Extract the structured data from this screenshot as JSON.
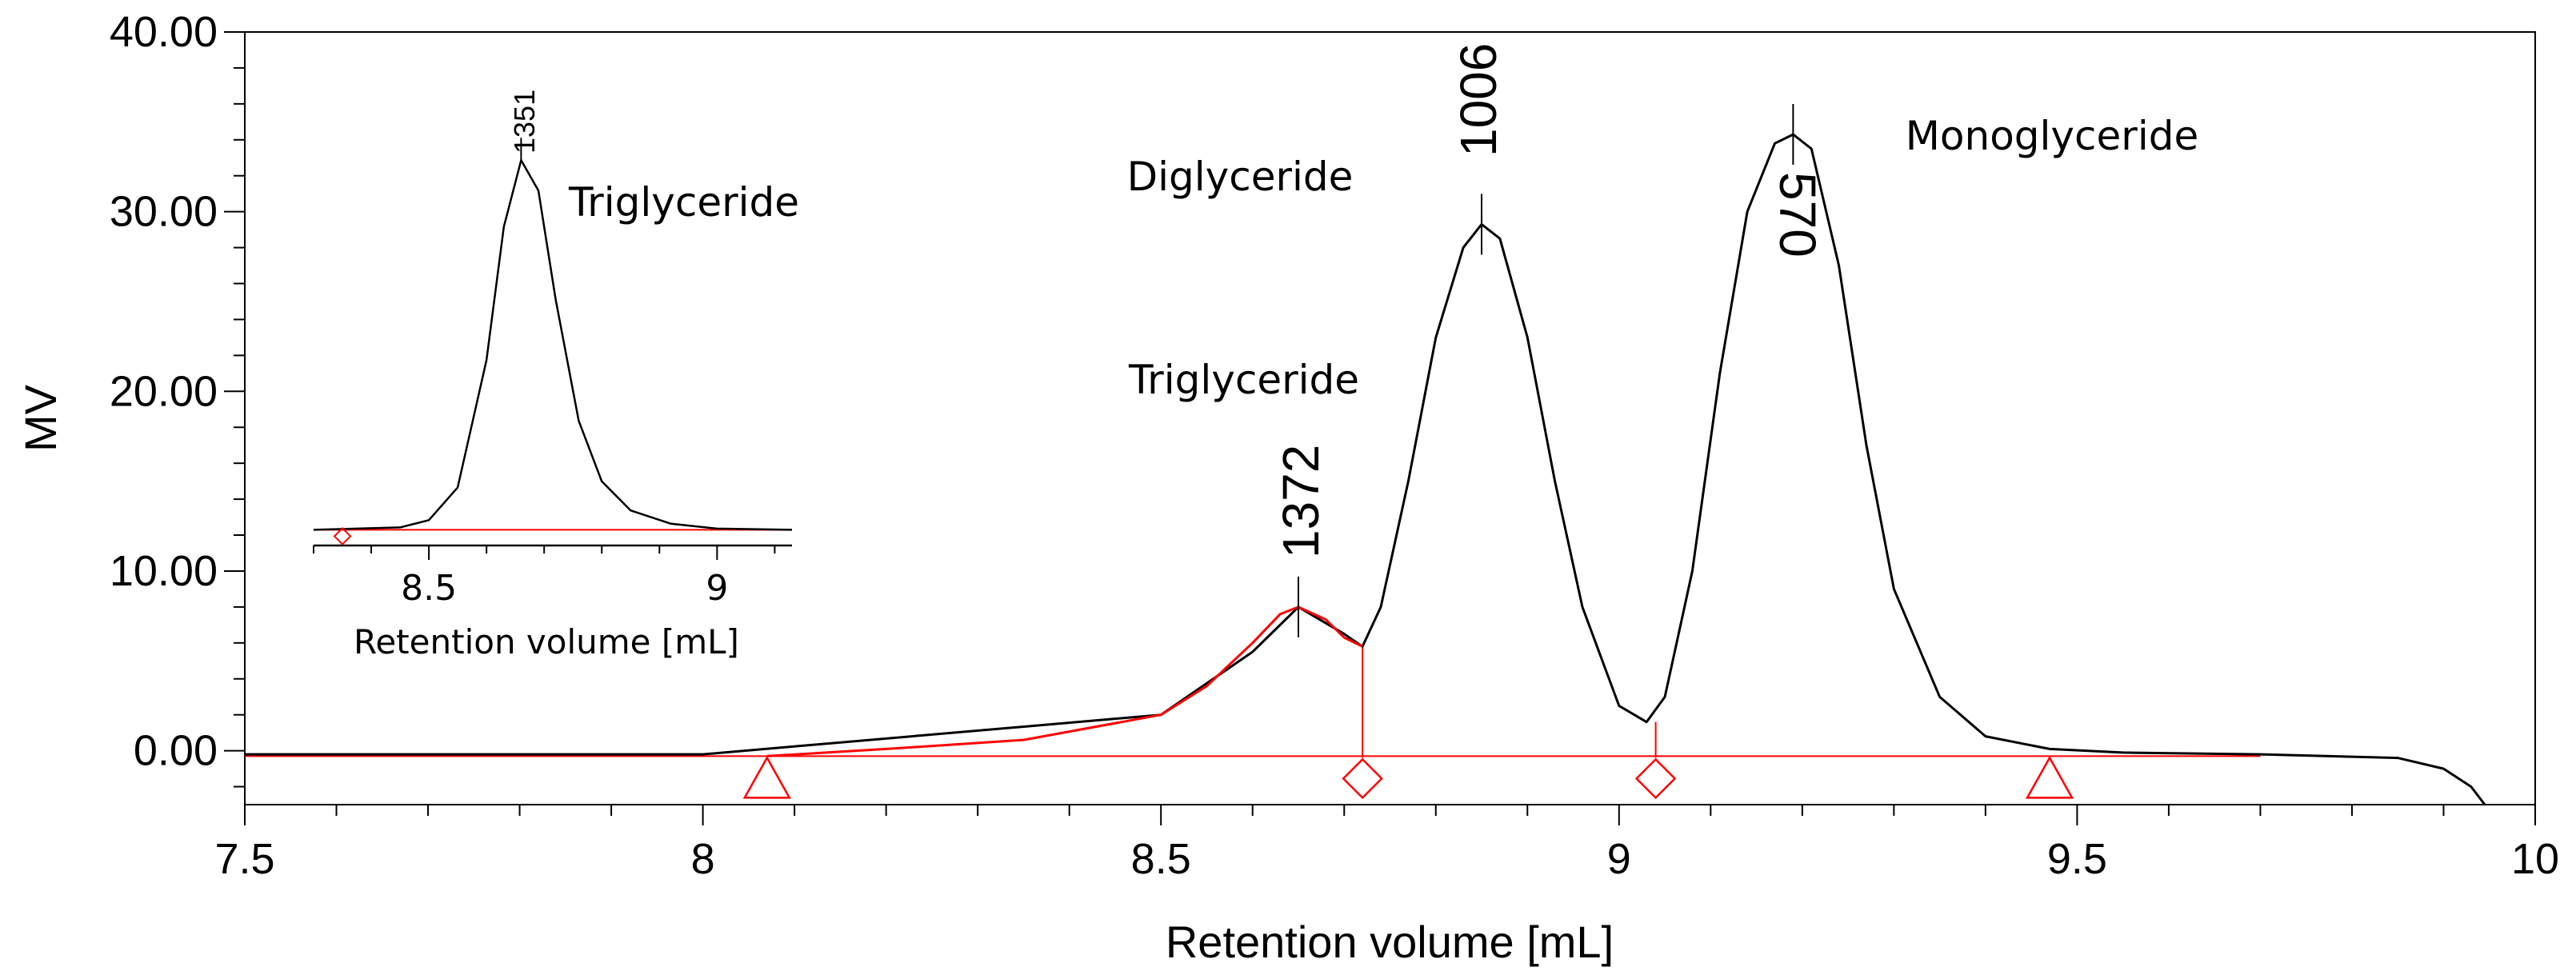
{
  "chart_data": [
    {
      "type": "line",
      "xlabel": "Retention volume [mL]",
      "ylabel": "MV",
      "xlim": [
        7.5,
        10.0
      ],
      "ylim": [
        -3.0,
        40.0
      ],
      "x_ticks": [
        "7.5",
        "8",
        "8.5",
        "9",
        "9.5",
        "10"
      ],
      "y_ticks": [
        "0.00",
        "10.00",
        "20.00",
        "30.00",
        "40.00"
      ],
      "grid": false,
      "baseline_y": -0.3,
      "colors": {
        "signal": "#000000",
        "integrated": "#ff0000"
      },
      "series": [
        {
          "color": "#000000",
          "x": [
            7.5,
            8.0,
            8.5,
            8.6,
            8.65,
            8.7,
            8.72,
            8.74,
            8.77,
            8.8,
            8.83,
            8.85,
            8.87,
            8.9,
            8.93,
            8.96,
            9.0,
            9.03,
            9.05,
            9.08,
            9.11,
            9.14,
            9.17,
            9.19,
            9.21,
            9.24,
            9.27,
            9.3,
            9.35,
            9.4,
            9.47,
            9.55,
            9.7,
            9.85,
            9.9,
            9.93,
            9.945
          ],
          "y": [
            -0.2,
            -0.2,
            2.0,
            5.5,
            8.0,
            6.5,
            5.8,
            8.0,
            15.0,
            23.0,
            28.0,
            29.3,
            28.5,
            23.0,
            15.0,
            8.0,
            2.5,
            1.6,
            3.0,
            10.0,
            21.0,
            30.0,
            33.8,
            34.3,
            33.5,
            27.0,
            17.0,
            9.0,
            3.0,
            0.8,
            0.1,
            -0.1,
            -0.2,
            -0.4,
            -1.0,
            -2.0,
            -3.0
          ]
        },
        {
          "color": "#ff0000",
          "x": [
            8.07,
            8.2,
            8.35,
            8.5,
            8.55,
            8.6,
            8.63,
            8.65,
            8.68,
            8.7,
            8.72
          ],
          "y": [
            -0.3,
            0.1,
            0.6,
            2.0,
            3.6,
            6.0,
            7.6,
            8.0,
            7.3,
            6.3,
            5.8
          ]
        }
      ],
      "peaks": [
        {
          "label": "1372",
          "name": "Triglyceride",
          "x": 8.65,
          "y": 8.0
        },
        {
          "label": "1006",
          "name": "Diglyceride",
          "x": 8.85,
          "y": 29.3
        },
        {
          "label": "570",
          "name": "Monoglyceride",
          "x": 9.19,
          "y": 34.3
        }
      ],
      "integration_markers": [
        {
          "shape": "triangle",
          "x": 8.07
        },
        {
          "shape": "diamond",
          "x": 8.72
        },
        {
          "shape": "diamond",
          "x": 9.04
        },
        {
          "shape": "triangle",
          "x": 9.47
        }
      ],
      "drop_lines": [
        {
          "x": 8.72,
          "y": 5.8
        },
        {
          "x": 9.04,
          "y": 1.6
        }
      ]
    },
    {
      "type": "line",
      "role": "inset",
      "xlabel": "Retention volume [mL]",
      "ylabel": "",
      "xlim": [
        8.3,
        9.13
      ],
      "ylim": [
        -0.5,
        32.5
      ],
      "x_ticks": [
        "8.5",
        "9"
      ],
      "baseline_y": 0.0,
      "series": [
        {
          "color": "#000000",
          "x": [
            8.3,
            8.45,
            8.5,
            8.55,
            8.6,
            8.63,
            8.66,
            8.69,
            8.72,
            8.76,
            8.8,
            8.85,
            8.92,
            9.0,
            9.13
          ],
          "y": [
            0.0,
            0.2,
            0.8,
            3.5,
            14.0,
            25.0,
            30.5,
            28.0,
            19.0,
            9.0,
            4.0,
            1.6,
            0.5,
            0.1,
            0.0
          ]
        }
      ],
      "peaks": [
        {
          "label": "1351",
          "name": "Triglyceride",
          "x": 8.66,
          "y": 30.5
        }
      ],
      "integration_markers": [
        {
          "shape": "diamond",
          "x": 8.35
        }
      ]
    }
  ]
}
